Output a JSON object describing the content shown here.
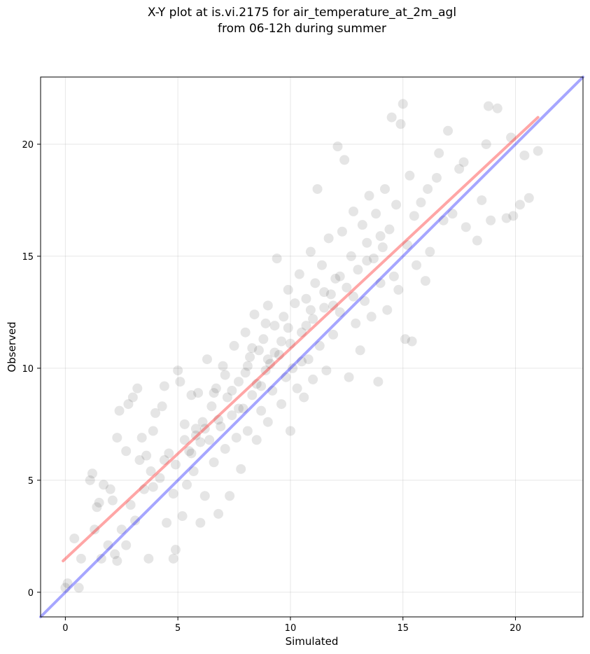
{
  "chart_data": {
    "type": "scatter",
    "title_line1": "X-Y plot at is.vi.2175 for air_temperature_at_2m_agl",
    "title_line2": "from 06-12h during summer",
    "xlabel": "Simulated",
    "ylabel": "Observed",
    "xlim": [
      -1.1,
      23.0
    ],
    "ylim": [
      -1.1,
      23.0
    ],
    "xticks": [
      0,
      5,
      10,
      15,
      20
    ],
    "yticks": [
      0,
      5,
      10,
      15,
      20
    ],
    "grid": true,
    "point_color": "#000000",
    "point_alpha": 0.1,
    "series": [
      {
        "values": [
          [
            0.0,
            0.2
          ],
          [
            0.1,
            0.4
          ],
          [
            0.4,
            2.4
          ],
          [
            0.6,
            0.2
          ],
          [
            0.7,
            1.5
          ],
          [
            1.1,
            5.0
          ],
          [
            1.2,
            5.3
          ],
          [
            1.3,
            2.8
          ],
          [
            1.4,
            3.8
          ],
          [
            1.5,
            4.0
          ],
          [
            1.6,
            1.5
          ],
          [
            1.7,
            4.8
          ],
          [
            1.9,
            2.1
          ],
          [
            2.0,
            4.6
          ],
          [
            2.1,
            4.1
          ],
          [
            2.2,
            1.7
          ],
          [
            2.3,
            6.9
          ],
          [
            2.3,
            1.4
          ],
          [
            2.4,
            8.1
          ],
          [
            2.5,
            2.8
          ],
          [
            2.7,
            6.3
          ],
          [
            2.7,
            2.1
          ],
          [
            2.8,
            8.4
          ],
          [
            2.9,
            3.9
          ],
          [
            3.0,
            8.7
          ],
          [
            3.1,
            3.2
          ],
          [
            3.2,
            9.1
          ],
          [
            3.3,
            5.9
          ],
          [
            3.4,
            6.9
          ],
          [
            3.5,
            4.6
          ],
          [
            3.6,
            6.1
          ],
          [
            3.7,
            1.5
          ],
          [
            3.8,
            5.4
          ],
          [
            3.9,
            7.2
          ],
          [
            4.0,
            8.0
          ],
          [
            4.2,
            5.1
          ],
          [
            4.3,
            8.3
          ],
          [
            4.4,
            9.2
          ],
          [
            4.5,
            3.1
          ],
          [
            4.6,
            6.2
          ],
          [
            4.8,
            4.4
          ],
          [
            4.9,
            1.9
          ],
          [
            4.8,
            1.5
          ],
          [
            5.0,
            9.9
          ],
          [
            5.1,
            9.4
          ],
          [
            5.2,
            3.4
          ],
          [
            5.3,
            7.5
          ],
          [
            5.4,
            4.8
          ],
          [
            5.5,
            6.3
          ],
          [
            5.6,
            8.8
          ],
          [
            5.7,
            5.4
          ],
          [
            5.8,
            7.3
          ],
          [
            5.9,
            8.9
          ],
          [
            6.0,
            3.1
          ],
          [
            6.0,
            6.7
          ],
          [
            6.1,
            7.6
          ],
          [
            6.2,
            4.3
          ],
          [
            6.3,
            10.4
          ],
          [
            6.4,
            6.8
          ],
          [
            6.5,
            8.3
          ],
          [
            6.6,
            5.8
          ],
          [
            6.7,
            9.1
          ],
          [
            6.8,
            3.5
          ],
          [
            6.9,
            7.4
          ],
          [
            7.0,
            10.1
          ],
          [
            7.1,
            6.4
          ],
          [
            7.2,
            8.7
          ],
          [
            7.3,
            4.3
          ],
          [
            7.4,
            7.9
          ],
          [
            7.5,
            11.0
          ],
          [
            7.6,
            6.9
          ],
          [
            7.7,
            9.4
          ],
          [
            7.8,
            5.5
          ],
          [
            7.9,
            8.2
          ],
          [
            8.0,
            11.6
          ],
          [
            8.0,
            9.8
          ],
          [
            8.1,
            7.2
          ],
          [
            8.2,
            10.5
          ],
          [
            8.3,
            8.8
          ],
          [
            8.4,
            12.4
          ],
          [
            8.5,
            9.3
          ],
          [
            8.5,
            6.8
          ],
          [
            8.6,
            10.8
          ],
          [
            8.7,
            8.1
          ],
          [
            8.8,
            11.3
          ],
          [
            8.9,
            9.9
          ],
          [
            9.0,
            12.8
          ],
          [
            9.0,
            7.6
          ],
          [
            9.1,
            10.2
          ],
          [
            9.2,
            9.0
          ],
          [
            9.3,
            11.9
          ],
          [
            9.4,
            14.9
          ],
          [
            9.5,
            10.6
          ],
          [
            9.6,
            8.4
          ],
          [
            9.7,
            12.3
          ],
          [
            9.8,
            9.6
          ],
          [
            9.9,
            13.5
          ],
          [
            10.0,
            11.1
          ],
          [
            10.0,
            7.2
          ],
          [
            10.1,
            10.0
          ],
          [
            10.2,
            12.9
          ],
          [
            10.3,
            9.1
          ],
          [
            10.4,
            14.2
          ],
          [
            10.5,
            11.6
          ],
          [
            10.6,
            8.7
          ],
          [
            10.7,
            13.1
          ],
          [
            10.8,
            10.4
          ],
          [
            10.9,
            15.2
          ],
          [
            11.0,
            12.2
          ],
          [
            11.0,
            9.5
          ],
          [
            11.1,
            13.8
          ],
          [
            11.2,
            18.0
          ],
          [
            11.3,
            11.0
          ],
          [
            11.4,
            14.6
          ],
          [
            11.5,
            12.7
          ],
          [
            11.6,
            9.9
          ],
          [
            11.7,
            15.8
          ],
          [
            11.8,
            13.3
          ],
          [
            11.9,
            11.5
          ],
          [
            12.0,
            14.0
          ],
          [
            12.1,
            19.9
          ],
          [
            12.2,
            12.5
          ],
          [
            12.3,
            16.1
          ],
          [
            12.4,
            19.3
          ],
          [
            12.5,
            13.6
          ],
          [
            12.6,
            9.6
          ],
          [
            12.7,
            15.0
          ],
          [
            12.8,
            17.0
          ],
          [
            12.9,
            12.0
          ],
          [
            13.0,
            14.4
          ],
          [
            13.1,
            10.8
          ],
          [
            13.2,
            16.4
          ],
          [
            13.3,
            13.0
          ],
          [
            13.4,
            15.6
          ],
          [
            13.5,
            17.7
          ],
          [
            13.6,
            12.3
          ],
          [
            13.7,
            14.9
          ],
          [
            13.8,
            16.9
          ],
          [
            13.9,
            9.4
          ],
          [
            14.0,
            13.8
          ],
          [
            14.1,
            15.4
          ],
          [
            14.2,
            18.0
          ],
          [
            14.3,
            12.6
          ],
          [
            14.4,
            16.2
          ],
          [
            14.5,
            21.2
          ],
          [
            14.6,
            14.1
          ],
          [
            14.7,
            17.3
          ],
          [
            14.8,
            13.5
          ],
          [
            14.9,
            20.9
          ],
          [
            15.0,
            21.8
          ],
          [
            15.1,
            11.3
          ],
          [
            15.2,
            15.5
          ],
          [
            15.3,
            18.6
          ],
          [
            15.4,
            11.2
          ],
          [
            15.5,
            16.8
          ],
          [
            15.6,
            14.6
          ],
          [
            15.8,
            17.4
          ],
          [
            16.0,
            13.9
          ],
          [
            16.1,
            18.0
          ],
          [
            16.2,
            15.2
          ],
          [
            16.5,
            18.5
          ],
          [
            16.6,
            19.6
          ],
          [
            16.8,
            16.6
          ],
          [
            17.0,
            20.6
          ],
          [
            17.2,
            16.9
          ],
          [
            17.5,
            18.9
          ],
          [
            17.7,
            19.2
          ],
          [
            17.8,
            16.3
          ],
          [
            18.3,
            15.7
          ],
          [
            18.5,
            17.5
          ],
          [
            18.7,
            20.0
          ],
          [
            18.8,
            21.7
          ],
          [
            18.9,
            16.6
          ],
          [
            19.2,
            21.6
          ],
          [
            19.6,
            16.7
          ],
          [
            19.8,
            20.3
          ],
          [
            19.9,
            16.8
          ],
          [
            20.2,
            17.3
          ],
          [
            20.4,
            19.5
          ],
          [
            20.6,
            17.6
          ],
          [
            21.0,
            19.7
          ],
          [
            7.1,
            9.7
          ],
          [
            6.6,
            8.9
          ],
          [
            7.7,
            8.2
          ],
          [
            8.1,
            10.1
          ],
          [
            8.7,
            9.2
          ],
          [
            9.3,
            10.7
          ],
          [
            9.9,
            11.8
          ],
          [
            10.5,
            10.3
          ],
          [
            6.2,
            7.3
          ],
          [
            5.6,
            6.2
          ],
          [
            4.9,
            5.7
          ],
          [
            5.3,
            6.8
          ],
          [
            6.8,
            7.7
          ],
          [
            8.3,
            10.9
          ],
          [
            8.9,
            12.0
          ],
          [
            9.6,
            11.2
          ],
          [
            10.9,
            12.6
          ],
          [
            11.5,
            13.4
          ],
          [
            12.2,
            14.1
          ],
          [
            12.8,
            13.2
          ],
          [
            13.4,
            14.8
          ],
          [
            14.0,
            15.9
          ],
          [
            3.9,
            4.7
          ],
          [
            4.4,
            5.9
          ],
          [
            5.8,
            7.0
          ],
          [
            7.4,
            9.0
          ],
          [
            9.0,
            10.4
          ],
          [
            10.7,
            11.9
          ],
          [
            11.9,
            12.8
          ]
        ]
      }
    ],
    "lines": [
      {
        "name": "",
        "color": "#ff0000",
        "alpha": 0.35,
        "points": [
          [
            -0.1,
            1.4
          ],
          [
            21.0,
            21.2
          ]
        ]
      },
      {
        "name": "",
        "color": "#0000ff",
        "alpha": 0.35,
        "points": [
          [
            -1.1,
            -1.1
          ],
          [
            23.0,
            23.0
          ]
        ]
      }
    ]
  }
}
